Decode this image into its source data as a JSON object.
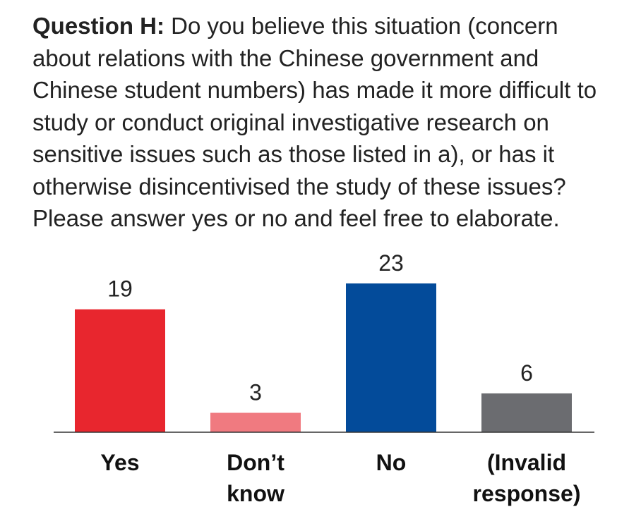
{
  "question": {
    "label": "Question H:",
    "text": " Do you believe this situation (concern about relations with the Chinese government and Chinese student numbers) has made it more difficult to study or conduct original investigative research on sensitive issues such as those listed in a), or has it otherwise disincentivised the study of these issues? Please answer yes or no and feel free to elaborate."
  },
  "chart_data": {
    "type": "bar",
    "categories": [
      "Yes",
      "Don’t know",
      "No",
      "(Invalid response)"
    ],
    "category_lines": [
      [
        "Yes"
      ],
      [
        "Don’t",
        "know"
      ],
      [
        "No"
      ],
      [
        "(Invalid",
        "response)"
      ]
    ],
    "values": [
      19,
      3,
      23,
      6
    ],
    "colors": [
      "#e8262e",
      "#f07a80",
      "#034b9a",
      "#6b6c70"
    ],
    "ylim": [
      0,
      23
    ],
    "grid": false
  }
}
